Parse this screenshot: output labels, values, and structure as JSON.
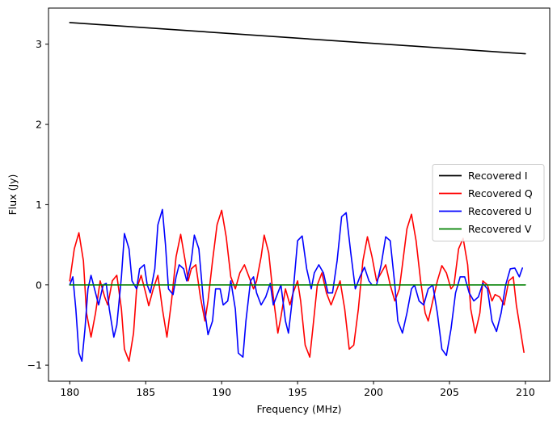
{
  "chart_data": {
    "type": "line",
    "title": "",
    "xlabel": "Frequency (MHz)",
    "ylabel": "Flux (Jy)",
    "xlim": [
      178.6,
      211.6
    ],
    "ylim": [
      -1.2,
      3.45
    ],
    "xticks": [
      180,
      185,
      190,
      195,
      200,
      205,
      210
    ],
    "xtick_labels": [
      "180",
      "185",
      "190",
      "195",
      "200",
      "205",
      "210"
    ],
    "yticks": [
      -1,
      0,
      1,
      2,
      3
    ],
    "ytick_labels": [
      "−1",
      "0",
      "1",
      "2",
      "3"
    ],
    "grid": false,
    "legend_position": "center-right",
    "series": [
      {
        "name": "Recovered I",
        "color": "#000000",
        "x": [
          180,
          210
        ],
        "y": [
          3.27,
          2.88
        ]
      },
      {
        "name": "Recovered Q",
        "color": "#ff0000",
        "x": [
          180.0,
          180.3,
          180.6,
          180.9,
          181.1,
          181.4,
          181.7,
          182.0,
          182.3,
          182.5,
          182.8,
          183.1,
          183.4,
          183.6,
          183.9,
          184.2,
          184.4,
          184.7,
          185.0,
          185.2,
          185.5,
          185.8,
          186.1,
          186.4,
          186.7,
          187.0,
          187.3,
          187.6,
          187.8,
          188.0,
          188.3,
          188.6,
          188.9,
          189.1,
          189.4,
          189.7,
          190.0,
          190.3,
          190.6,
          190.9,
          191.2,
          191.5,
          191.8,
          192.1,
          192.3,
          192.6,
          192.8,
          193.1,
          193.4,
          193.7,
          193.9,
          194.2,
          194.5,
          194.7,
          195.0,
          195.2,
          195.5,
          195.8,
          196.0,
          196.3,
          196.6,
          196.9,
          197.2,
          197.5,
          197.8,
          198.1,
          198.4,
          198.7,
          199.0,
          199.3,
          199.6,
          199.9,
          200.2,
          200.5,
          200.8,
          201.1,
          201.4,
          201.7,
          201.9,
          202.2,
          202.5,
          202.8,
          203.1,
          203.4,
          203.6,
          203.9,
          204.2,
          204.5,
          204.8,
          205.1,
          205.3,
          205.6,
          205.9,
          206.2,
          206.4,
          206.7,
          207.0,
          207.2,
          207.5,
          207.8,
          208.0,
          208.3,
          208.6,
          208.9,
          209.2,
          209.4,
          209.7,
          209.9
        ],
        "y": [
          0.05,
          0.45,
          0.65,
          0.3,
          -0.35,
          -0.65,
          -0.35,
          0.05,
          -0.15,
          -0.25,
          0.05,
          0.12,
          -0.3,
          -0.8,
          -0.95,
          -0.6,
          -0.05,
          0.12,
          -0.1,
          -0.26,
          -0.05,
          0.12,
          -0.3,
          -0.65,
          -0.2,
          0.35,
          0.63,
          0.3,
          0.05,
          0.2,
          0.25,
          -0.15,
          -0.45,
          -0.2,
          0.3,
          0.75,
          0.93,
          0.6,
          0.1,
          -0.05,
          0.15,
          0.25,
          0.1,
          -0.05,
          0.05,
          0.35,
          0.62,
          0.4,
          -0.15,
          -0.6,
          -0.4,
          -0.05,
          -0.25,
          -0.1,
          0.05,
          -0.2,
          -0.75,
          -0.9,
          -0.55,
          0.0,
          0.15,
          -0.1,
          -0.25,
          -0.1,
          0.05,
          -0.3,
          -0.8,
          -0.75,
          -0.3,
          0.3,
          0.6,
          0.35,
          0.05,
          0.15,
          0.25,
          0.0,
          -0.2,
          -0.05,
          0.25,
          0.7,
          0.88,
          0.55,
          0.05,
          -0.35,
          -0.45,
          -0.2,
          0.05,
          0.24,
          0.15,
          -0.05,
          0.0,
          0.45,
          0.58,
          0.25,
          -0.3,
          -0.6,
          -0.35,
          0.05,
          0.0,
          -0.2,
          -0.12,
          -0.15,
          -0.25,
          0.05,
          0.1,
          -0.25,
          -0.6,
          -0.84
        ]
      },
      {
        "name": "Recovered U",
        "color": "#0000ff",
        "x": [
          180.0,
          180.2,
          180.4,
          180.6,
          180.8,
          181.0,
          181.2,
          181.4,
          181.7,
          181.9,
          182.2,
          182.4,
          182.6,
          182.9,
          183.1,
          183.4,
          183.6,
          183.9,
          184.1,
          184.4,
          184.6,
          184.9,
          185.1,
          185.3,
          185.6,
          185.8,
          186.1,
          186.3,
          186.5,
          186.8,
          187.0,
          187.2,
          187.5,
          187.7,
          188.0,
          188.2,
          188.5,
          188.8,
          189.1,
          189.4,
          189.6,
          189.9,
          190.1,
          190.4,
          190.6,
          190.9,
          191.1,
          191.4,
          191.6,
          191.9,
          192.1,
          192.3,
          192.6,
          192.9,
          193.2,
          193.4,
          193.6,
          193.9,
          194.2,
          194.4,
          194.7,
          195.0,
          195.3,
          195.6,
          195.9,
          196.1,
          196.4,
          196.7,
          197.0,
          197.3,
          197.6,
          197.9,
          198.2,
          198.5,
          198.8,
          199.1,
          199.4,
          199.7,
          199.9,
          200.2,
          200.5,
          200.8,
          201.1,
          201.4,
          201.6,
          201.9,
          202.2,
          202.5,
          202.7,
          203.0,
          203.3,
          203.6,
          203.9,
          204.2,
          204.5,
          204.8,
          205.1,
          205.4,
          205.7,
          206.0,
          206.3,
          206.6,
          206.9,
          207.2,
          207.5,
          207.8,
          208.1,
          208.4,
          208.7,
          209.0,
          209.3,
          209.6,
          209.8
        ],
        "y": [
          0.0,
          0.1,
          -0.3,
          -0.85,
          -0.95,
          -0.55,
          -0.05,
          0.12,
          -0.1,
          -0.25,
          0.0,
          0.02,
          -0.3,
          -0.65,
          -0.5,
          0.1,
          0.64,
          0.45,
          0.05,
          -0.05,
          0.2,
          0.25,
          0.0,
          -0.1,
          0.2,
          0.75,
          0.94,
          0.5,
          -0.05,
          -0.12,
          0.1,
          0.25,
          0.2,
          0.05,
          0.3,
          0.62,
          0.45,
          -0.2,
          -0.62,
          -0.45,
          -0.05,
          -0.05,
          -0.25,
          -0.2,
          0.05,
          -0.3,
          -0.85,
          -0.9,
          -0.45,
          0.05,
          0.1,
          -0.1,
          -0.25,
          -0.15,
          0.02,
          -0.25,
          -0.15,
          0.0,
          -0.45,
          -0.6,
          -0.1,
          0.55,
          0.61,
          0.2,
          -0.05,
          0.15,
          0.25,
          0.15,
          -0.1,
          -0.1,
          0.3,
          0.85,
          0.9,
          0.4,
          -0.05,
          0.1,
          0.22,
          0.05,
          0.0,
          0.0,
          0.25,
          0.6,
          0.55,
          0.0,
          -0.45,
          -0.6,
          -0.35,
          -0.05,
          0.0,
          -0.2,
          -0.25,
          -0.05,
          0.0,
          -0.35,
          -0.8,
          -0.88,
          -0.55,
          -0.1,
          0.1,
          0.1,
          -0.1,
          -0.2,
          -0.15,
          0.02,
          -0.05,
          -0.45,
          -0.58,
          -0.35,
          0.0,
          0.2,
          0.21,
          0.1,
          0.21
        ]
      },
      {
        "name": "Recovered V",
        "color": "#008000",
        "x": [
          180,
          210
        ],
        "y": [
          0.0,
          0.0
        ]
      }
    ]
  }
}
